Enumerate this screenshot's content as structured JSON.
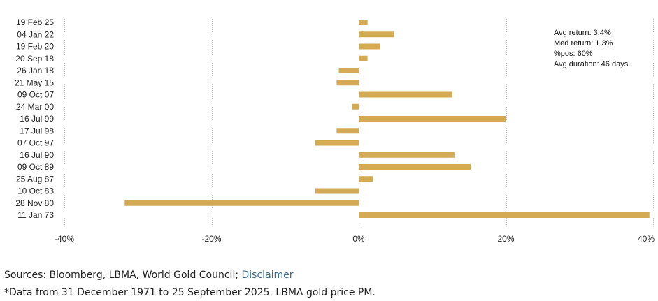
{
  "chart_data": {
    "type": "bar",
    "orientation": "horizontal",
    "categories": [
      "19 Feb 25",
      "04 Jan 22",
      "19 Feb 20",
      "20 Sep 18",
      "26 Jan 18",
      "21 May 15",
      "09 Oct 07",
      "24 Mar 00",
      "16 Jul 99",
      "17 Jul 98",
      "07 Oct 97",
      "16 Jul 90",
      "09 Oct 89",
      "25 Aug 87",
      "10 Oct 83",
      "28 Nov 80",
      "11 Jan 73"
    ],
    "values": [
      1.2,
      4.8,
      2.9,
      1.2,
      -2.7,
      -3.0,
      12.7,
      -0.9,
      20.0,
      -3.0,
      -5.9,
      13.0,
      15.2,
      1.9,
      -5.9,
      -31.8,
      39.5
    ],
    "unit": "%",
    "xlim": [
      -40,
      40
    ],
    "xticks": [
      -40,
      -20,
      0,
      20,
      40
    ],
    "tick_labels": [
      "-40%",
      "-20%",
      "0%",
      "20%",
      "40%"
    ],
    "bar_color": "#d4aa55",
    "grid": "vertical dotted",
    "annotations": [
      "Avg return: 3.4%",
      "Med return: 1.3%",
      "%pos: 60%",
      "Avg duration: 46 days"
    ]
  },
  "footer": {
    "sources_text": "Sources: Bloomberg, LBMA, World Gold Council; ",
    "disclaimer_link": "Disclaimer",
    "note": "*Data from 31 December 1971 to 25 September 2025. LBMA gold price PM."
  }
}
